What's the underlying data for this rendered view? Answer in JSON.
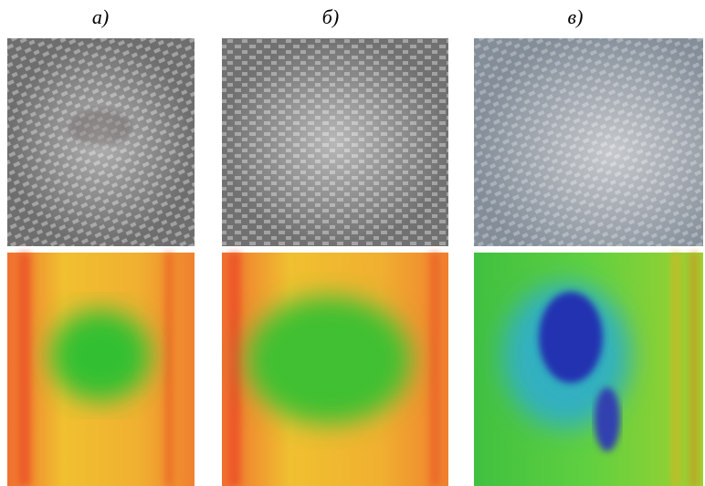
{
  "panels": [
    {
      "label": "а)"
    },
    {
      "label": "б)"
    },
    {
      "label": "в)"
    }
  ]
}
